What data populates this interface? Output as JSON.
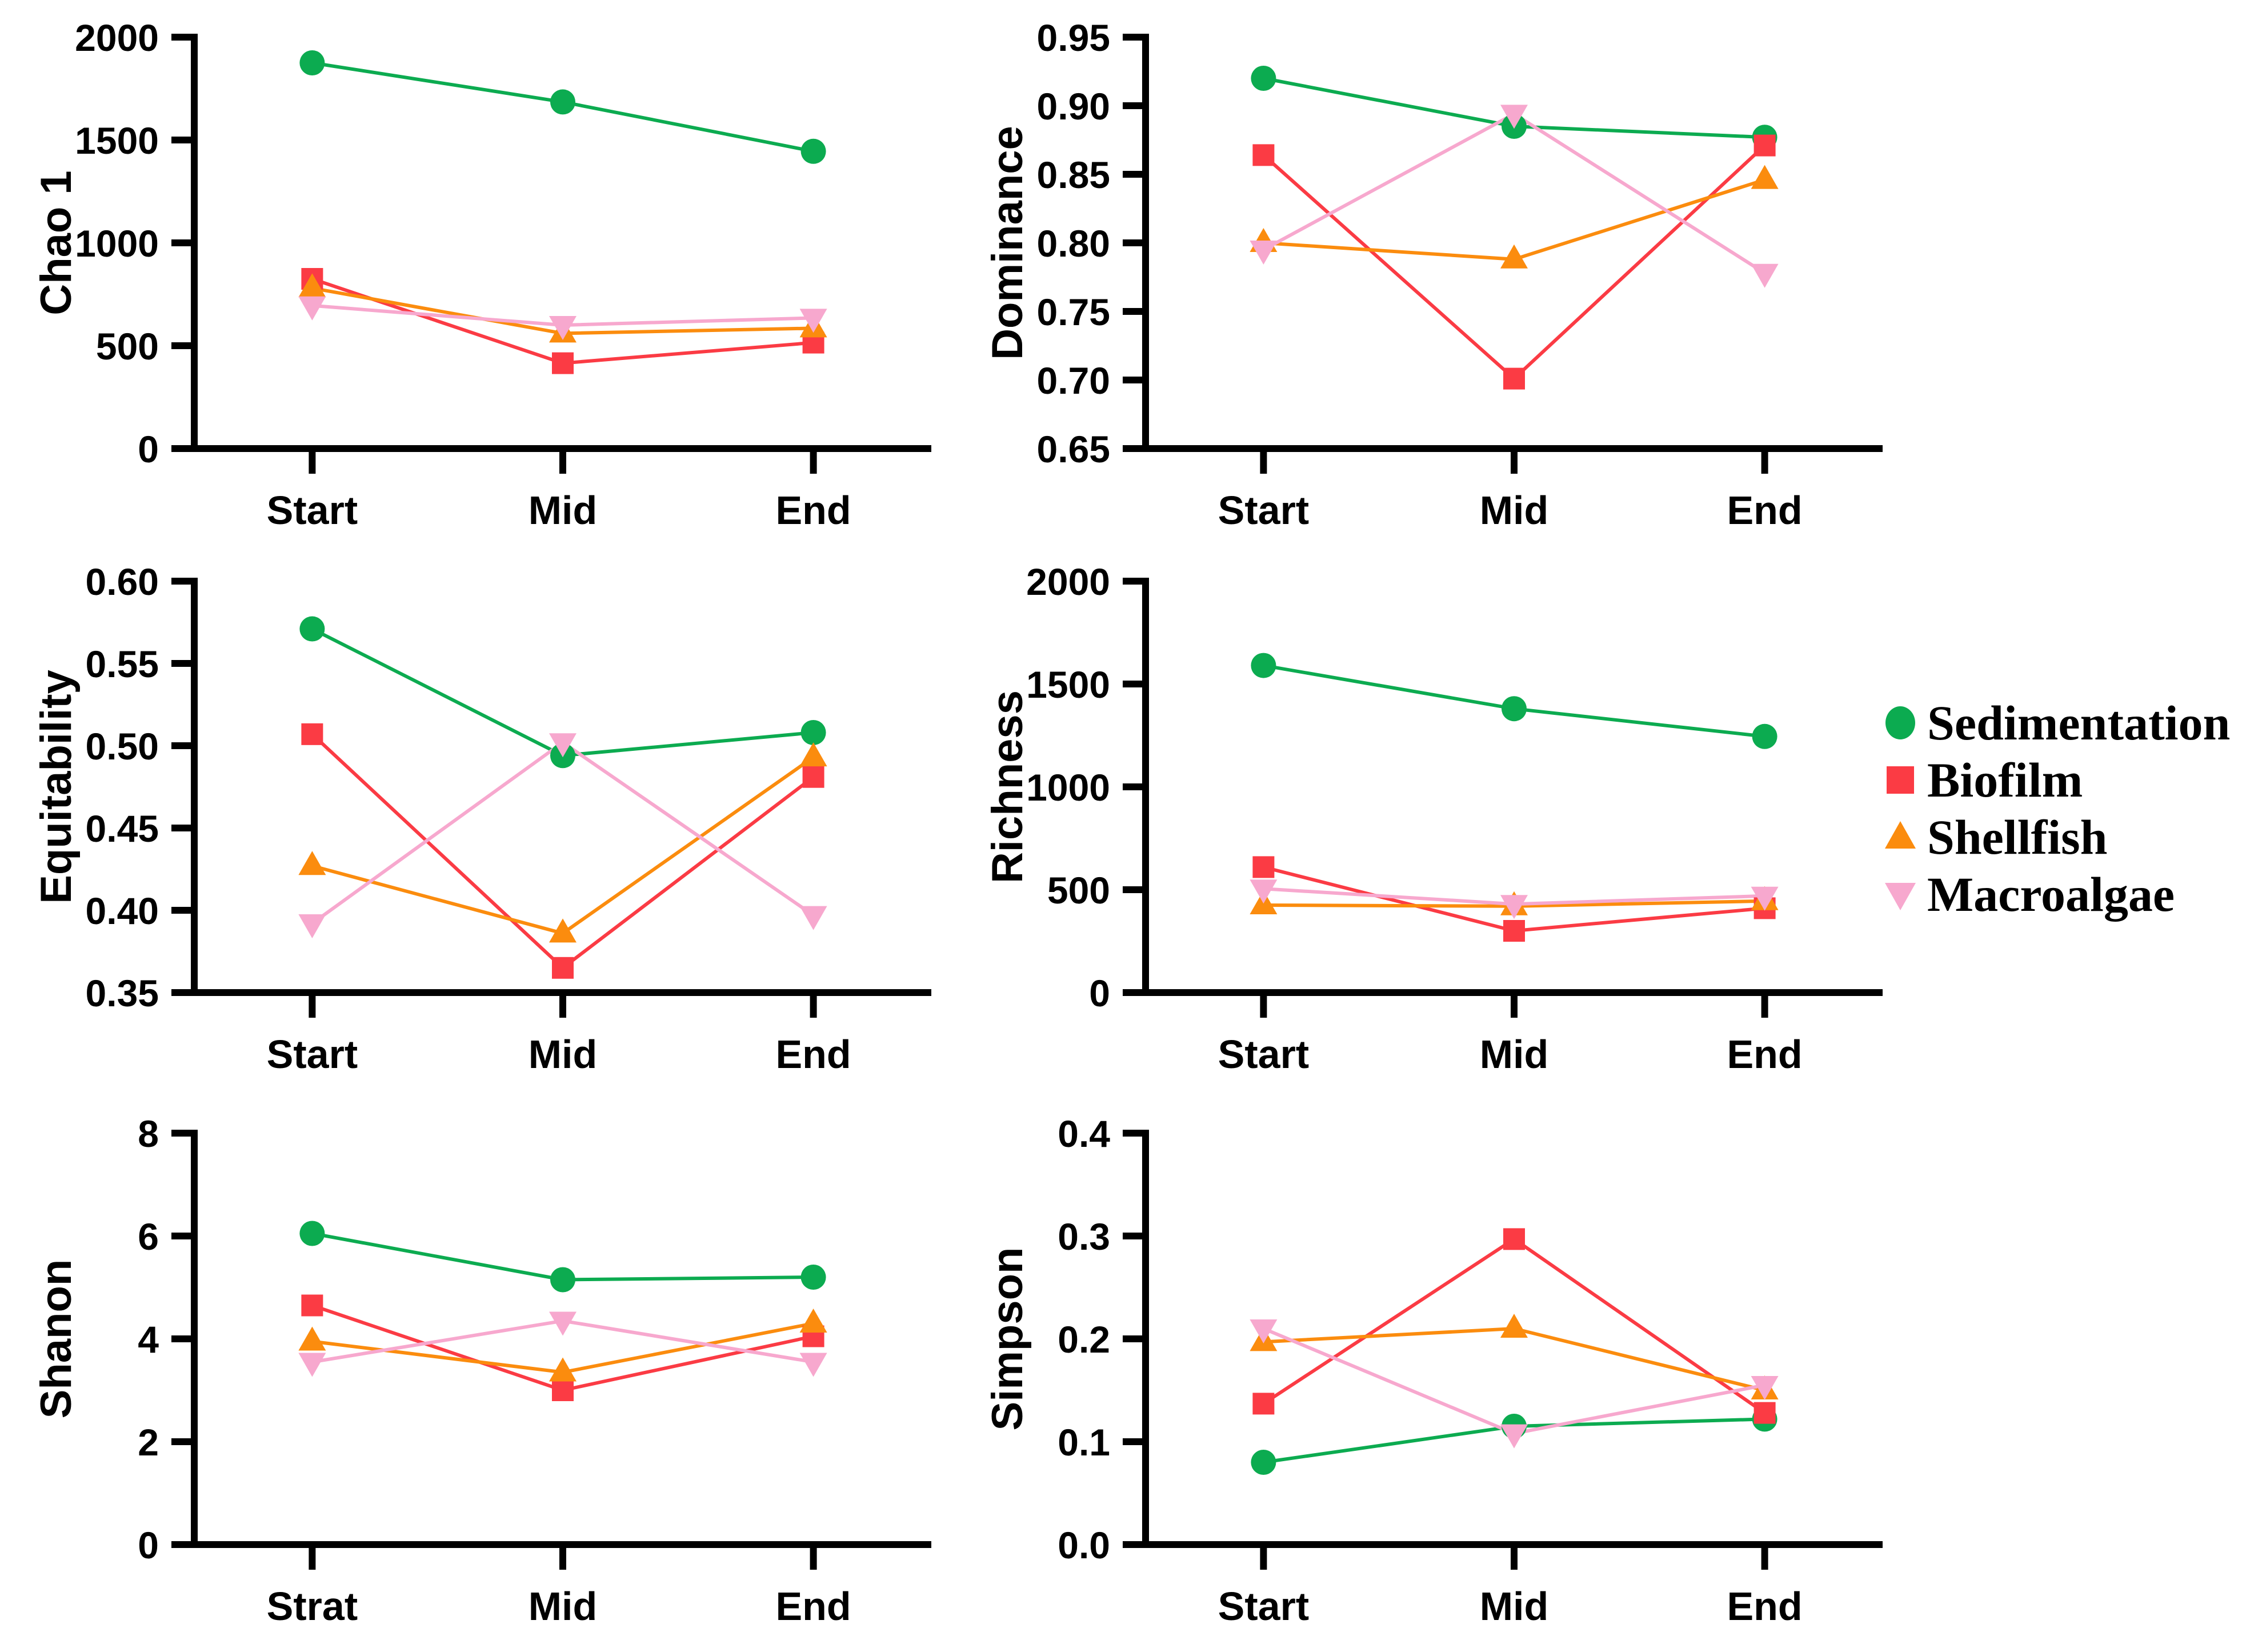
{
  "figure": {
    "background": "#ffffff",
    "axis_color": "#000000",
    "legend": {
      "items": [
        {
          "label": "Sedimentation",
          "marker": "circle",
          "color": "#0cab50"
        },
        {
          "label": "Biofilm",
          "marker": "square",
          "color": "#fb3b44"
        },
        {
          "label": "Shellfish",
          "marker": "triangle-up",
          "color": "#fb8c0e"
        },
        {
          "label": "Macroalgae",
          "marker": "triangle-down",
          "color": "#f7a8ce"
        }
      ]
    }
  },
  "chart_data": [
    {
      "id": "chao1",
      "type": "line",
      "ylabel": "Chao 1",
      "categories": [
        "Start",
        "Mid",
        "End"
      ],
      "ylim": [
        0,
        2000
      ],
      "ytick_step": 500,
      "ydecimals": 0,
      "grid": false,
      "series": [
        {
          "name": "Sedimentation",
          "marker": "circle",
          "color": "#0cab50",
          "values": [
            1875,
            1685,
            1445
          ]
        },
        {
          "name": "Biofilm",
          "marker": "square",
          "color": "#fb3b44",
          "values": [
            825,
            415,
            515
          ]
        },
        {
          "name": "Shellfish",
          "marker": "triangle-up",
          "color": "#fb8c0e",
          "values": [
            780,
            560,
            585
          ]
        },
        {
          "name": "Macroalgae",
          "marker": "triangle-down",
          "color": "#f7a8ce",
          "values": [
            695,
            600,
            635
          ]
        }
      ]
    },
    {
      "id": "dominance",
      "type": "line",
      "ylabel": "Dominance",
      "categories": [
        "Start",
        "Mid",
        "End"
      ],
      "ylim": [
        0.65,
        0.95
      ],
      "ytick_step": 0.05,
      "ydecimals": 2,
      "grid": false,
      "series": [
        {
          "name": "Sedimentation",
          "marker": "circle",
          "color": "#0cab50",
          "values": [
            0.92,
            0.885,
            0.877
          ]
        },
        {
          "name": "Biofilm",
          "marker": "square",
          "color": "#fb3b44",
          "values": [
            0.864,
            0.701,
            0.871
          ]
        },
        {
          "name": "Shellfish",
          "marker": "triangle-up",
          "color": "#fb8c0e",
          "values": [
            0.8,
            0.788,
            0.846
          ]
        },
        {
          "name": "Macroalgae",
          "marker": "triangle-down",
          "color": "#f7a8ce",
          "values": [
            0.795,
            0.894,
            0.778
          ]
        }
      ]
    },
    {
      "id": "equitability",
      "type": "line",
      "ylabel": "Equitability",
      "categories": [
        "Start",
        "Mid",
        "End"
      ],
      "ylim": [
        0.35,
        0.6
      ],
      "ytick_step": 0.05,
      "ydecimals": 2,
      "grid": false,
      "series": [
        {
          "name": "Sedimentation",
          "marker": "circle",
          "color": "#0cab50",
          "values": [
            0.571,
            0.494,
            0.508
          ]
        },
        {
          "name": "Biofilm",
          "marker": "square",
          "color": "#fb3b44",
          "values": [
            0.507,
            0.365,
            0.481
          ]
        },
        {
          "name": "Shellfish",
          "marker": "triangle-up",
          "color": "#fb8c0e",
          "values": [
            0.427,
            0.386,
            0.493
          ]
        },
        {
          "name": "Macroalgae",
          "marker": "triangle-down",
          "color": "#f7a8ce",
          "values": [
            0.392,
            0.502,
            0.397
          ]
        }
      ]
    },
    {
      "id": "richness",
      "type": "line",
      "ylabel": "Richness",
      "categories": [
        "Start",
        "Mid",
        "End"
      ],
      "ylim": [
        0,
        2000
      ],
      "ytick_step": 500,
      "ydecimals": 0,
      "grid": false,
      "series": [
        {
          "name": "Sedimentation",
          "marker": "circle",
          "color": "#0cab50",
          "values": [
            1590,
            1380,
            1245
          ]
        },
        {
          "name": "Biofilm",
          "marker": "square",
          "color": "#fb3b44",
          "values": [
            610,
            300,
            410
          ]
        },
        {
          "name": "Shellfish",
          "marker": "triangle-up",
          "color": "#fb8c0e",
          "values": [
            425,
            420,
            445
          ]
        },
        {
          "name": "Macroalgae",
          "marker": "triangle-down",
          "color": "#f7a8ce",
          "values": [
            505,
            430,
            470
          ]
        }
      ]
    },
    {
      "id": "shanon",
      "type": "line",
      "ylabel": "Shanon",
      "categories": [
        "Strat",
        "Mid",
        "End"
      ],
      "ylim": [
        0,
        8
      ],
      "ytick_step": 2,
      "ydecimals": 0,
      "grid": false,
      "series": [
        {
          "name": "Sedimentation",
          "marker": "circle",
          "color": "#0cab50",
          "values": [
            6.05,
            5.15,
            5.2
          ]
        },
        {
          "name": "Biofilm",
          "marker": "square",
          "color": "#fb3b44",
          "values": [
            4.65,
            3.0,
            4.05
          ]
        },
        {
          "name": "Shellfish",
          "marker": "triangle-up",
          "color": "#fb8c0e",
          "values": [
            3.95,
            3.35,
            4.3
          ]
        },
        {
          "name": "Macroalgae",
          "marker": "triangle-down",
          "color": "#f7a8ce",
          "values": [
            3.55,
            4.35,
            3.55
          ]
        }
      ]
    },
    {
      "id": "simpson",
      "type": "line",
      "ylabel": "Simpson",
      "categories": [
        "Start",
        "Mid",
        "End"
      ],
      "ylim": [
        0.0,
        0.4
      ],
      "ytick_step": 0.1,
      "ydecimals": 1,
      "grid": false,
      "series": [
        {
          "name": "Sedimentation",
          "marker": "circle",
          "color": "#0cab50",
          "values": [
            0.08,
            0.115,
            0.122
          ]
        },
        {
          "name": "Biofilm",
          "marker": "square",
          "color": "#fb3b44",
          "values": [
            0.137,
            0.297,
            0.128
          ]
        },
        {
          "name": "Shellfish",
          "marker": "triangle-up",
          "color": "#fb8c0e",
          "values": [
            0.197,
            0.21,
            0.15
          ]
        },
        {
          "name": "Macroalgae",
          "marker": "triangle-down",
          "color": "#f7a8ce",
          "values": [
            0.21,
            0.108,
            0.155
          ]
        }
      ]
    }
  ]
}
